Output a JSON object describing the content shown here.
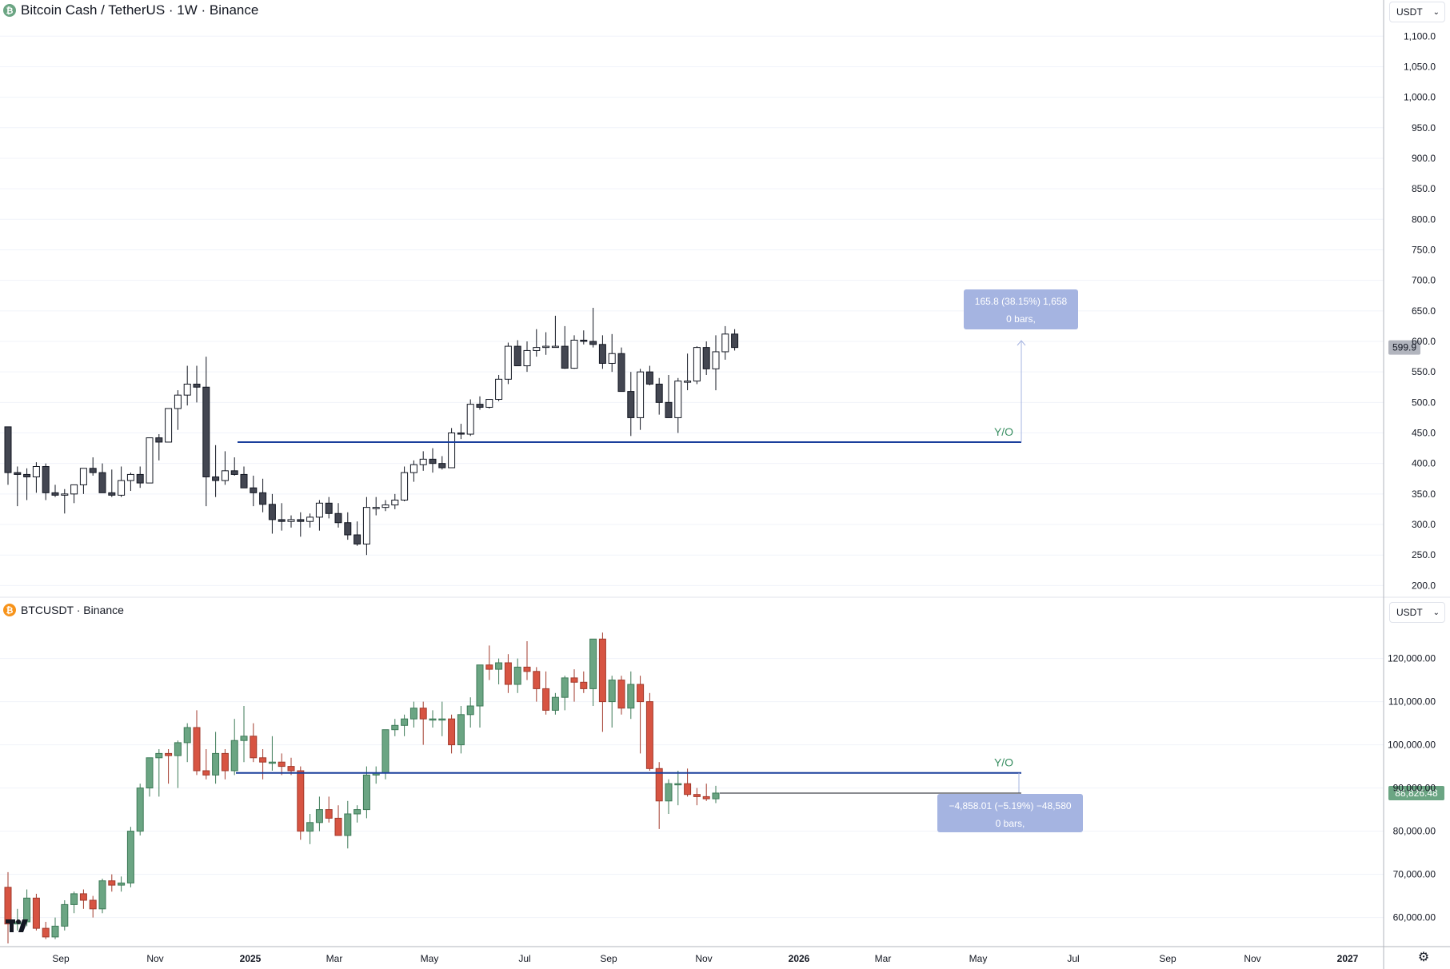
{
  "colors": {
    "up_top": "#ffffff",
    "down_top": "#434651",
    "up_bottom": "#6ba583",
    "down_bottom": "#d75442",
    "yo_line": "#1a3f9c",
    "measure_bg": "#a5b4e1",
    "btc_badge": "#6ba583",
    "bch_badge": "#b2b5be",
    "grid": "#f0f3fa"
  },
  "top_pane": {
    "title": "Bitcoin Cash / TetherUS · 1W · Binance",
    "icon": "bitcoin-cash-icon",
    "currency": "USDT",
    "yo_label": "Y/O",
    "yo_level": 435,
    "last_price": "599.9",
    "measure": {
      "line1": "165.8 (38.15%) 1,658",
      "line2": "0 bars,"
    },
    "y_ticks": [
      "1,100.0",
      "1,050.0",
      "1,000.0",
      "950.0",
      "900.0",
      "850.0",
      "800.0",
      "750.0",
      "700.0",
      "650.0",
      "600.0",
      "550.0",
      "500.0",
      "450.0",
      "400.0",
      "350.0",
      "300.0",
      "250.0",
      "200.0"
    ]
  },
  "bottom_pane": {
    "title": "BTCUSDT · Binance",
    "icon": "bitcoin-icon",
    "currency": "USDT",
    "yo_label": "Y/O",
    "yo_level": 93500,
    "last_price": "88,826.48",
    "measure": {
      "line1": "−4,858.01 (−5.19%) −48,580",
      "line2": "0 bars,"
    },
    "y_ticks": [
      "120,000.00",
      "110,000.00",
      "100,000.00",
      "90,000.00",
      "80,000.00",
      "70,000.00",
      "60,000.00"
    ]
  },
  "x_axis": {
    "labels": [
      "Sep",
      "Nov",
      "2025",
      "Mar",
      "May",
      "Jul",
      "Sep",
      "Nov",
      "2026",
      "Mar",
      "May",
      "Jul",
      "Sep",
      "Nov",
      "2027"
    ],
    "bold": [
      "2025",
      "2026",
      "2027"
    ]
  },
  "chart_data": [
    {
      "type": "candlestick",
      "title": "Bitcoin Cash / TetherUS · 1W · Binance",
      "ylim": [
        190,
        1120
      ],
      "ohlc": [
        [
          460,
          365,
          460,
          385
        ],
        [
          385,
          330,
          395,
          382
        ],
        [
          382,
          340,
          392,
          378
        ],
        [
          378,
          352,
          402,
          395
        ],
        [
          395,
          340,
          400,
          352
        ],
        [
          352,
          345,
          365,
          348
        ],
        [
          348,
          318,
          358,
          350
        ],
        [
          350,
          335,
          365,
          365
        ],
        [
          365,
          350,
          392,
          392
        ],
        [
          392,
          380,
          410,
          385
        ],
        [
          385,
          355,
          400,
          352
        ],
        [
          352,
          345,
          390,
          348
        ],
        [
          348,
          345,
          395,
          372
        ],
        [
          372,
          355,
          385,
          382
        ],
        [
          382,
          360,
          395,
          368
        ],
        [
          368,
          368,
          442,
          442
        ],
        [
          442,
          405,
          448,
          435
        ],
        [
          435,
          435,
          490,
          490
        ],
        [
          490,
          455,
          520,
          512
        ],
        [
          512,
          495,
          560,
          530
        ],
        [
          530,
          500,
          560,
          525
        ],
        [
          525,
          330,
          575,
          378
        ],
        [
          378,
          345,
          430,
          372
        ],
        [
          372,
          365,
          420,
          388
        ],
        [
          388,
          380,
          410,
          382
        ],
        [
          382,
          375,
          395,
          360
        ],
        [
          360,
          330,
          380,
          352
        ],
        [
          352,
          320,
          375,
          333
        ],
        [
          333,
          285,
          350,
          308
        ],
        [
          308,
          290,
          335,
          305
        ],
        [
          305,
          295,
          315,
          308
        ],
        [
          308,
          280,
          320,
          305
        ],
        [
          305,
          295,
          318,
          312
        ],
        [
          312,
          290,
          340,
          335
        ],
        [
          335,
          310,
          345,
          318
        ],
        [
          318,
          295,
          335,
          303
        ],
        [
          303,
          275,
          320,
          283
        ],
        [
          283,
          265,
          305,
          268
        ],
        [
          268,
          250,
          345,
          328
        ],
        [
          328,
          315,
          345,
          328
        ],
        [
          328,
          322,
          340,
          332
        ],
        [
          332,
          325,
          350,
          340
        ],
        [
          340,
          338,
          395,
          385
        ],
        [
          385,
          370,
          405,
          398
        ],
        [
          398,
          388,
          420,
          407
        ],
        [
          407,
          385,
          425,
          400
        ],
        [
          400,
          390,
          412,
          393
        ],
        [
          393,
          395,
          458,
          450
        ],
        [
          450,
          440,
          465,
          448
        ],
        [
          448,
          445,
          505,
          497
        ],
        [
          497,
          488,
          510,
          492
        ],
        [
          492,
          490,
          505,
          505
        ],
        [
          505,
          502,
          545,
          538
        ],
        [
          538,
          530,
          598,
          592
        ],
        [
          592,
          565,
          602,
          560
        ],
        [
          560,
          550,
          600,
          585
        ],
        [
          585,
          575,
          620,
          590
        ],
        [
          590,
          578,
          615,
          592
        ],
        [
          592,
          590,
          642,
          592
        ],
        [
          592,
          555,
          625,
          556
        ],
        [
          556,
          555,
          610,
          602
        ],
        [
          602,
          595,
          618,
          600
        ],
        [
          600,
          590,
          655,
          595
        ],
        [
          595,
          555,
          610,
          564
        ],
        [
          564,
          550,
          612,
          580
        ],
        [
          580,
          530,
          590,
          518
        ],
        [
          518,
          445,
          550,
          475
        ],
        [
          475,
          455,
          555,
          550
        ],
        [
          550,
          528,
          560,
          530
        ],
        [
          530,
          480,
          540,
          500
        ],
        [
          500,
          478,
          545,
          475
        ],
        [
          475,
          450,
          540,
          535
        ],
        [
          535,
          520,
          580,
          535
        ],
        [
          535,
          530,
          592,
          590
        ],
        [
          590,
          545,
          600,
          555
        ],
        [
          555,
          520,
          610,
          583
        ],
        [
          583,
          570,
          625,
          612
        ],
        [
          612,
          585,
          620,
          590
        ]
      ]
    },
    {
      "type": "candlestick",
      "title": "BTCUSDT · Binance",
      "ylim": [
        54000,
        129000
      ],
      "ohlc": [
        [
          67000,
          54000,
          70500,
          58500
        ],
        [
          58500,
          57000,
          62000,
          59000
        ],
        [
          59000,
          58000,
          66500,
          64500
        ],
        [
          64500,
          57000,
          65500,
          57500
        ],
        [
          57500,
          55000,
          59000,
          55500
        ],
        [
          55500,
          55000,
          60000,
          58000
        ],
        [
          58000,
          57000,
          64000,
          63000
        ],
        [
          63000,
          61000,
          66000,
          65500
        ],
        [
          65500,
          62000,
          66500,
          64000
        ],
        [
          64000,
          60000,
          65000,
          62000
        ],
        [
          62000,
          61000,
          69000,
          68500
        ],
        [
          68500,
          66000,
          70000,
          67500
        ],
        [
          67500,
          66000,
          69500,
          68000
        ],
        [
          68000,
          67000,
          81000,
          80000
        ],
        [
          80000,
          79000,
          91000,
          90000
        ],
        [
          90000,
          88000,
          93000,
          97000
        ],
        [
          97000,
          88000,
          99000,
          98000
        ],
        [
          98000,
          91000,
          99000,
          97500
        ],
        [
          97500,
          90000,
          101000,
          100500
        ],
        [
          100500,
          96000,
          105000,
          104000
        ],
        [
          104000,
          93000,
          108000,
          94000
        ],
        [
          94000,
          92000,
          99000,
          93000
        ],
        [
          93000,
          91000,
          103000,
          98000
        ],
        [
          98000,
          92000,
          99000,
          94000
        ],
        [
          94000,
          93000,
          106000,
          101000
        ],
        [
          101000,
          96000,
          109000,
          102000
        ],
        [
          102000,
          96000,
          105000,
          97000
        ],
        [
          97000,
          92000,
          99000,
          96000
        ],
        [
          96000,
          94000,
          102000,
          96000
        ],
        [
          96000,
          93000,
          98000,
          95000
        ],
        [
          95000,
          93000,
          97000,
          94000
        ],
        [
          94000,
          78000,
          95000,
          80000
        ],
        [
          80000,
          77000,
          84000,
          82000
        ],
        [
          82000,
          80000,
          88000,
          85000
        ],
        [
          85000,
          82000,
          88000,
          83000
        ],
        [
          83000,
          80000,
          86000,
          79000
        ],
        [
          79000,
          76000,
          87000,
          84000
        ],
        [
          84000,
          82000,
          86000,
          85000
        ],
        [
          85000,
          83000,
          95000,
          93000
        ],
        [
          93000,
          91000,
          95000,
          93500
        ],
        [
          93500,
          92000,
          98000,
          103500
        ],
        [
          103500,
          102000,
          106000,
          104500
        ],
        [
          104500,
          102000,
          107000,
          106000
        ],
        [
          106000,
          104000,
          110000,
          108500
        ],
        [
          108500,
          100000,
          110000,
          106000
        ],
        [
          106000,
          104000,
          108000,
          106000
        ],
        [
          106000,
          102000,
          110000,
          106000
        ],
        [
          106000,
          98000,
          107000,
          100000
        ],
        [
          100000,
          98000,
          109000,
          107000
        ],
        [
          107000,
          104000,
          111000,
          109000
        ],
        [
          109000,
          104000,
          114000,
          118500
        ],
        [
          118500,
          115000,
          123000,
          117500
        ],
        [
          117500,
          114000,
          120000,
          119000
        ],
        [
          119000,
          112000,
          121000,
          114000
        ],
        [
          114000,
          112000,
          120000,
          118000
        ],
        [
          118000,
          115000,
          124000,
          117000
        ],
        [
          117000,
          110000,
          118000,
          113000
        ],
        [
          113000,
          107000,
          117000,
          108000
        ],
        [
          108000,
          107000,
          112000,
          111000
        ],
        [
          111000,
          108000,
          116000,
          115500
        ],
        [
          115500,
          110000,
          117500,
          114500
        ],
        [
          114500,
          112000,
          117000,
          113000
        ],
        [
          113000,
          109000,
          123000,
          124500
        ],
        [
          124500,
          103000,
          126000,
          110000
        ],
        [
          110000,
          104000,
          116000,
          115000
        ],
        [
          115000,
          107000,
          116000,
          108500
        ],
        [
          108500,
          106000,
          117000,
          114000
        ],
        [
          114000,
          98000,
          116000,
          110000
        ],
        [
          110000,
          94000,
          112000,
          94500
        ],
        [
          94500,
          80500,
          96000,
          87000
        ],
        [
          87000,
          84000,
          92000,
          91000
        ],
        [
          91000,
          86000,
          94000,
          91000
        ],
        [
          91000,
          88000,
          94500,
          88500
        ],
        [
          88500,
          86000,
          90000,
          88000
        ],
        [
          88000,
          87000,
          91000,
          87500
        ],
        [
          87500,
          86500,
          90500,
          88826
        ]
      ]
    }
  ]
}
